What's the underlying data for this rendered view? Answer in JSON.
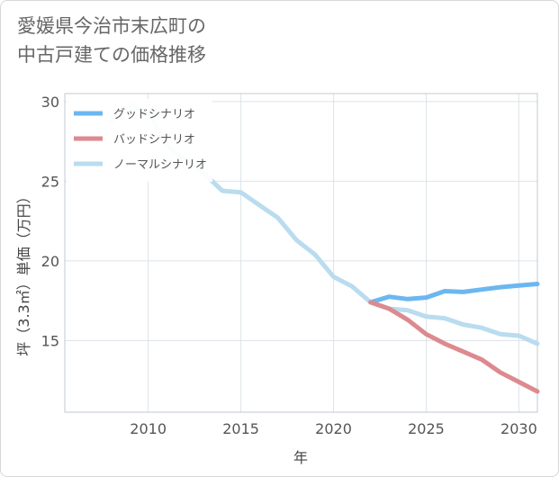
{
  "title": "愛媛県今治市末広町の\n中古戸建ての価格推移",
  "chart_data": {
    "type": "line",
    "xlabel": "年",
    "ylabel": "坪（3.3㎡）単価（万円）",
    "xlim": [
      2005.5,
      2031
    ],
    "ylim": [
      10.5,
      30.5
    ],
    "x_ticks": [
      2010,
      2015,
      2020,
      2025,
      2030
    ],
    "y_ticks": [
      15,
      20,
      25,
      30
    ],
    "grid": true,
    "legend_position": "top-left",
    "series": [
      {
        "name": "グッドシナリオ",
        "color": "#6bb7f0",
        "x": [
          2022,
          2023,
          2024,
          2025,
          2026,
          2027,
          2028,
          2029,
          2030,
          2031
        ],
        "y": [
          17.4,
          17.75,
          17.6,
          17.7,
          18.1,
          18.05,
          18.2,
          18.35,
          18.45,
          18.55
        ]
      },
      {
        "name": "バッドシナリオ",
        "color": "#dc8a8f",
        "x": [
          2022,
          2023,
          2024,
          2025,
          2026,
          2027,
          2028,
          2029,
          2030,
          2031
        ],
        "y": [
          17.4,
          17.0,
          16.3,
          15.4,
          14.8,
          14.3,
          13.8,
          13.0,
          12.4,
          11.8
        ]
      },
      {
        "name": "ノーマルシナリオ",
        "color": "#b9dcef",
        "x": [
          2008,
          2009,
          2010,
          2011,
          2012,
          2013,
          2014,
          2015,
          2016,
          2017,
          2018,
          2019,
          2020,
          2021,
          2022,
          2023,
          2024,
          2025,
          2026,
          2027,
          2028,
          2029,
          2030,
          2031
        ],
        "y": [
          28.8,
          29.8,
          29.3,
          27.3,
          26.3,
          25.5,
          24.4,
          24.3,
          23.5,
          22.7,
          21.3,
          20.4,
          19.0,
          18.4,
          17.4,
          17.0,
          16.9,
          16.5,
          16.4,
          16.0,
          15.8,
          15.4,
          15.3,
          14.8
        ]
      }
    ]
  }
}
